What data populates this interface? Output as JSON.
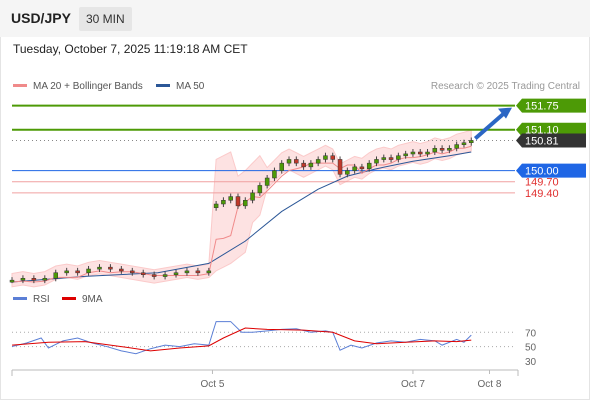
{
  "header": {
    "symbol": "USD/JPY",
    "interval": "30 MIN",
    "datetime": "Tuesday, October 7, 2025 11:19:18 AM CET"
  },
  "legend": {
    "ma20": {
      "label": "MA 20 + Bollinger Bands",
      "color": "#f08a8a"
    },
    "ma50": {
      "label": "MA 50",
      "color": "#2b5797"
    },
    "credit": "Research © 2025 Trading Central"
  },
  "rsi_legend": {
    "rsi": {
      "label": "RSI",
      "color": "#5b7fd6"
    },
    "ma9": {
      "label": "9MA",
      "color": "#dd0000"
    }
  },
  "chart_data": {
    "type": "line",
    "price_levels": [
      {
        "value": 151.75,
        "label": "151.75",
        "color": "#4d9a06",
        "kind": "resistance"
      },
      {
        "value": 151.1,
        "label": "151.10",
        "color": "#4d9a06",
        "kind": "resistance"
      },
      {
        "value": 150.81,
        "label": "150.81",
        "color": "#333333",
        "kind": "last"
      },
      {
        "value": 150.0,
        "label": "150.00",
        "color": "#1f66e5",
        "kind": "pivot"
      },
      {
        "value": 149.7,
        "label": "149.70",
        "color": "#e03030",
        "kind": "support"
      },
      {
        "value": 149.4,
        "label": "149.40",
        "color": "#e03030",
        "kind": "support"
      }
    ],
    "price_ylim": [
      147.0,
      151.9
    ],
    "price_series": [
      {
        "t": 0,
        "c": 147.05
      },
      {
        "t": 3,
        "c": 147.1
      },
      {
        "t": 6,
        "c": 147.05
      },
      {
        "t": 9,
        "c": 147.1
      },
      {
        "t": 12,
        "c": 147.25
      },
      {
        "t": 15,
        "c": 147.3
      },
      {
        "t": 18,
        "c": 147.25
      },
      {
        "t": 21,
        "c": 147.35
      },
      {
        "t": 24,
        "c": 147.4
      },
      {
        "t": 27,
        "c": 147.35
      },
      {
        "t": 30,
        "c": 147.3
      },
      {
        "t": 33,
        "c": 147.25
      },
      {
        "t": 36,
        "c": 147.2
      },
      {
        "t": 39,
        "c": 147.15
      },
      {
        "t": 42,
        "c": 147.2
      },
      {
        "t": 45,
        "c": 147.25
      },
      {
        "t": 48,
        "c": 147.3
      },
      {
        "t": 51,
        "c": 147.25
      },
      {
        "t": 54,
        "c": 147.3
      },
      {
        "t": 56,
        "c": 149.1
      },
      {
        "t": 58,
        "c": 149.2
      },
      {
        "t": 60,
        "c": 149.3
      },
      {
        "t": 62,
        "c": 149.05
      },
      {
        "t": 64,
        "c": 149.2
      },
      {
        "t": 66,
        "c": 149.4
      },
      {
        "t": 68,
        "c": 149.6
      },
      {
        "t": 70,
        "c": 149.8
      },
      {
        "t": 72,
        "c": 150.0
      },
      {
        "t": 74,
        "c": 150.2
      },
      {
        "t": 76,
        "c": 150.3
      },
      {
        "t": 78,
        "c": 150.2
      },
      {
        "t": 80,
        "c": 150.1
      },
      {
        "t": 82,
        "c": 150.2
      },
      {
        "t": 84,
        "c": 150.3
      },
      {
        "t": 86,
        "c": 150.4
      },
      {
        "t": 88,
        "c": 150.3
      },
      {
        "t": 90,
        "c": 149.9
      },
      {
        "t": 92,
        "c": 150.0
      },
      {
        "t": 94,
        "c": 150.1
      },
      {
        "t": 96,
        "c": 150.05
      },
      {
        "t": 98,
        "c": 150.2
      },
      {
        "t": 100,
        "c": 150.3
      },
      {
        "t": 102,
        "c": 150.35
      },
      {
        "t": 104,
        "c": 150.3
      },
      {
        "t": 106,
        "c": 150.4
      },
      {
        "t": 108,
        "c": 150.45
      },
      {
        "t": 110,
        "c": 150.5
      },
      {
        "t": 112,
        "c": 150.45
      },
      {
        "t": 114,
        "c": 150.5
      },
      {
        "t": 116,
        "c": 150.6
      },
      {
        "t": 118,
        "c": 150.55
      },
      {
        "t": 120,
        "c": 150.6
      },
      {
        "t": 122,
        "c": 150.7
      },
      {
        "t": 124,
        "c": 150.75
      },
      {
        "t": 126,
        "c": 150.81
      }
    ],
    "ma50_series": [
      {
        "t": 0,
        "v": 147.0
      },
      {
        "t": 20,
        "v": 147.15
      },
      {
        "t": 40,
        "v": 147.25
      },
      {
        "t": 54,
        "v": 147.5
      },
      {
        "t": 64,
        "v": 148.1
      },
      {
        "t": 74,
        "v": 148.9
      },
      {
        "t": 84,
        "v": 149.5
      },
      {
        "t": 92,
        "v": 149.85
      },
      {
        "t": 100,
        "v": 150.05
      },
      {
        "t": 110,
        "v": 150.25
      },
      {
        "t": 120,
        "v": 150.4
      },
      {
        "t": 126,
        "v": 150.5
      }
    ],
    "forecast_arrow": {
      "from": 150.81,
      "to": 151.75
    },
    "rsi": {
      "ticks": [
        70,
        50,
        30
      ],
      "ylim": [
        20,
        90
      ],
      "rsi_series": [
        {
          "t": 0,
          "v": 50
        },
        {
          "t": 4,
          "v": 55
        },
        {
          "t": 8,
          "v": 62
        },
        {
          "t": 10,
          "v": 48
        },
        {
          "t": 14,
          "v": 58
        },
        {
          "t": 18,
          "v": 62
        },
        {
          "t": 22,
          "v": 55
        },
        {
          "t": 26,
          "v": 50
        },
        {
          "t": 30,
          "v": 44
        },
        {
          "t": 34,
          "v": 40
        },
        {
          "t": 38,
          "v": 47
        },
        {
          "t": 42,
          "v": 52
        },
        {
          "t": 46,
          "v": 50
        },
        {
          "t": 50,
          "v": 54
        },
        {
          "t": 54,
          "v": 52
        },
        {
          "t": 56,
          "v": 85
        },
        {
          "t": 60,
          "v": 85
        },
        {
          "t": 63,
          "v": 70
        },
        {
          "t": 66,
          "v": 70
        },
        {
          "t": 70,
          "v": 72
        },
        {
          "t": 74,
          "v": 74
        },
        {
          "t": 78,
          "v": 75
        },
        {
          "t": 82,
          "v": 70
        },
        {
          "t": 86,
          "v": 72
        },
        {
          "t": 88,
          "v": 70
        },
        {
          "t": 90,
          "v": 45
        },
        {
          "t": 93,
          "v": 52
        },
        {
          "t": 96,
          "v": 48
        },
        {
          "t": 100,
          "v": 55
        },
        {
          "t": 104,
          "v": 58
        },
        {
          "t": 108,
          "v": 56
        },
        {
          "t": 112,
          "v": 60
        },
        {
          "t": 116,
          "v": 58
        },
        {
          "t": 118,
          "v": 52
        },
        {
          "t": 122,
          "v": 60
        },
        {
          "t": 124,
          "v": 56
        },
        {
          "t": 126,
          "v": 66
        }
      ],
      "ma9_series": [
        {
          "t": 0,
          "v": 52
        },
        {
          "t": 10,
          "v": 56
        },
        {
          "t": 20,
          "v": 57
        },
        {
          "t": 30,
          "v": 50
        },
        {
          "t": 38,
          "v": 44
        },
        {
          "t": 46,
          "v": 48
        },
        {
          "t": 54,
          "v": 51
        },
        {
          "t": 58,
          "v": 62
        },
        {
          "t": 64,
          "v": 76
        },
        {
          "t": 70,
          "v": 74
        },
        {
          "t": 80,
          "v": 73
        },
        {
          "t": 88,
          "v": 70
        },
        {
          "t": 94,
          "v": 58
        },
        {
          "t": 100,
          "v": 54
        },
        {
          "t": 108,
          "v": 56
        },
        {
          "t": 116,
          "v": 58
        },
        {
          "t": 122,
          "v": 57
        },
        {
          "t": 126,
          "v": 59
        }
      ]
    },
    "x_ticks": [
      {
        "t": 55,
        "label": "Oct 5"
      },
      {
        "t": 110,
        "label": "Oct 7"
      },
      {
        "t": 131,
        "label": "Oct 8"
      }
    ],
    "x_range": [
      0,
      138
    ]
  }
}
